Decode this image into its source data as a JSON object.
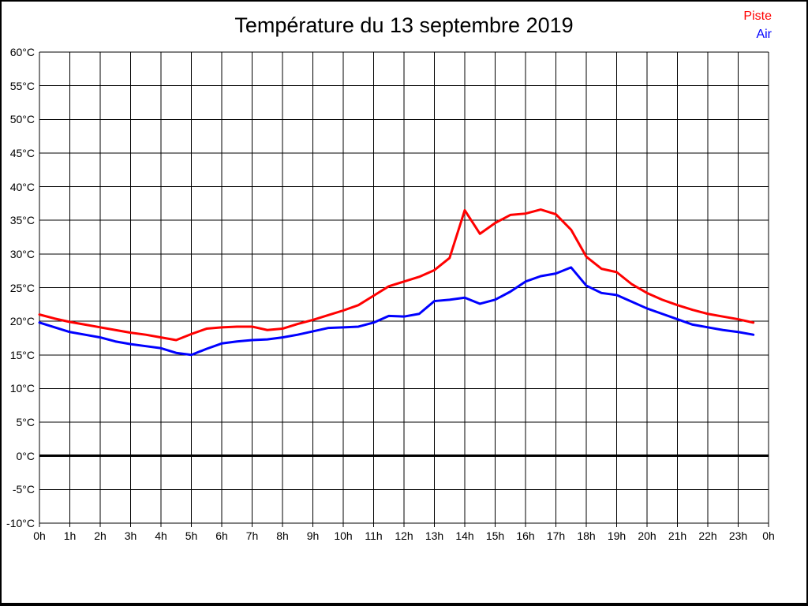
{
  "title": "Température du 13 septembre 2019",
  "legend": {
    "items": [
      {
        "label": "Piste",
        "color": "#ff0000"
      },
      {
        "label": "Air",
        "color": "#0000ff"
      }
    ]
  },
  "colors": {
    "piste": "#ff0000",
    "air": "#0000ff",
    "grid": "#000000",
    "zero_line": "#000000",
    "background": "#ffffff",
    "frame": "#000000"
  },
  "chart_data": {
    "type": "line",
    "title": "Température du 13 septembre 2019",
    "xlabel": "",
    "ylabel": "",
    "x_unit": "hours",
    "y_unit": "°C",
    "xlim": [
      0,
      24
    ],
    "ylim": [
      -10,
      60
    ],
    "grid": true,
    "legend_position": "top-right",
    "zero_line_at": 0,
    "x_tick_labels": [
      "0h",
      "1h",
      "2h",
      "3h",
      "4h",
      "5h",
      "6h",
      "7h",
      "8h",
      "9h",
      "10h",
      "11h",
      "12h",
      "13h",
      "14h",
      "15h",
      "16h",
      "17h",
      "18h",
      "19h",
      "20h",
      "21h",
      "22h",
      "23h",
      "0h"
    ],
    "y_tick_labels": [
      "60°C",
      "55°C",
      "50°C",
      "45°C",
      "40°C",
      "35°C",
      "30°C",
      "25°C",
      "20°C",
      "15°C",
      "10°C",
      "5°C",
      "0°C",
      "-5°C",
      "-10°C"
    ],
    "y_tick_values": [
      60,
      55,
      50,
      45,
      40,
      35,
      30,
      25,
      20,
      15,
      10,
      5,
      0,
      -5,
      -10
    ],
    "x": [
      0,
      0.5,
      1,
      1.5,
      2,
      2.5,
      3,
      3.5,
      4,
      4.5,
      5,
      5.5,
      6,
      6.5,
      7,
      7.5,
      8,
      8.5,
      9,
      9.5,
      10,
      10.5,
      11,
      11.5,
      12,
      12.5,
      13,
      13.5,
      14,
      14.5,
      15,
      15.5,
      16,
      16.5,
      17,
      17.5,
      18,
      18.5,
      19,
      19.5,
      20,
      20.5,
      21,
      21.5,
      22,
      22.5,
      23,
      23.5
    ],
    "series": [
      {
        "name": "Piste",
        "color": "#ff0000",
        "values": [
          21.0,
          20.4,
          19.9,
          19.5,
          19.1,
          18.7,
          18.3,
          18.0,
          17.6,
          17.2,
          18.1,
          18.9,
          19.1,
          19.2,
          19.2,
          18.7,
          18.9,
          19.6,
          20.2,
          20.9,
          21.6,
          22.4,
          23.8,
          25.2,
          25.9,
          26.6,
          27.6,
          29.4,
          36.5,
          33.0,
          34.6,
          35.8,
          36.0,
          36.6,
          35.9,
          33.6,
          29.6,
          27.8,
          27.3,
          25.5,
          24.2,
          23.2,
          22.4,
          21.7,
          21.1,
          20.7,
          20.3,
          19.8
        ]
      },
      {
        "name": "Air",
        "color": "#0000ff",
        "values": [
          19.8,
          19.1,
          18.4,
          18.0,
          17.6,
          17.0,
          16.6,
          16.3,
          16.0,
          15.3,
          15.0,
          15.9,
          16.7,
          17.0,
          17.2,
          17.3,
          17.6,
          18.0,
          18.5,
          19.0,
          19.1,
          19.2,
          19.8,
          20.8,
          20.7,
          21.1,
          23.0,
          23.2,
          23.5,
          22.6,
          23.2,
          24.4,
          25.9,
          26.7,
          27.1,
          28.0,
          25.3,
          24.2,
          23.9,
          22.9,
          21.9,
          21.1,
          20.3,
          19.5,
          19.1,
          18.7,
          18.4,
          18.0
        ]
      }
    ]
  }
}
